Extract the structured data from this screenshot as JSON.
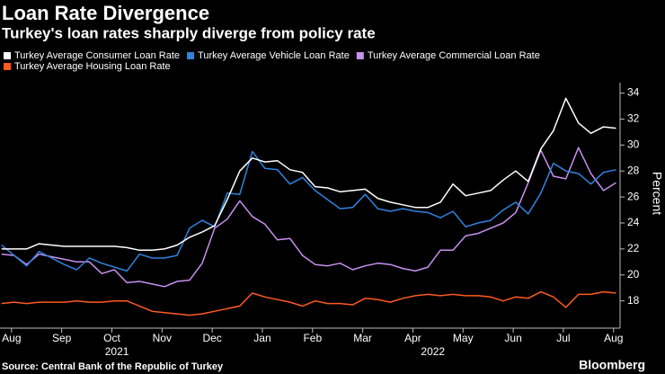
{
  "chart_data": {
    "type": "line",
    "title": "Loan Rate Divergence",
    "subtitle": "Turkey's loan rates sharply diverge from policy rate",
    "y_label": "Percent",
    "source": "Source: Central Bank of the Republic of Turkey",
    "credit": "Bloomberg",
    "legend": "top-left",
    "x": [
      -0.2,
      0.05,
      0.3,
      0.55,
      0.8,
      1.05,
      1.3,
      1.55,
      1.8,
      2.05,
      2.3,
      2.55,
      2.8,
      3.05,
      3.3,
      3.55,
      3.8,
      4.05,
      4.3,
      4.55,
      4.8,
      5.05,
      5.3,
      5.55,
      5.8,
      6.05,
      6.3,
      6.55,
      6.8,
      7.05,
      7.3,
      7.55,
      7.8,
      8.05,
      8.3,
      8.55,
      8.8,
      9.05,
      9.3,
      9.55,
      9.8,
      10.05,
      10.3,
      10.55,
      10.8,
      11.05,
      11.3,
      11.55,
      11.8,
      12.05
    ],
    "xlim": [
      -0.23,
      12.13
    ],
    "xticks": [
      {
        "value": 0,
        "label": "Aug"
      },
      {
        "value": 1,
        "label": "Sep"
      },
      {
        "value": 2,
        "label": "Oct"
      },
      {
        "value": 3,
        "label": "Nov"
      },
      {
        "value": 4,
        "label": "Dec"
      },
      {
        "value": 5,
        "label": "Jan"
      },
      {
        "value": 6,
        "label": "Feb"
      },
      {
        "value": 7,
        "label": "Mar"
      },
      {
        "value": 8,
        "label": "Apr"
      },
      {
        "value": 9,
        "label": "May"
      },
      {
        "value": 10,
        "label": "Jun"
      },
      {
        "value": 11,
        "label": "Jul"
      },
      {
        "value": 12,
        "label": "Aug"
      }
    ],
    "x_group_labels": [
      {
        "value": 2.1,
        "label": "2021"
      },
      {
        "value": 8.4,
        "label": "2022"
      }
    ],
    "ylim": [
      15.9,
      34.8
    ],
    "yticks": [
      18,
      20,
      22,
      24,
      26,
      28,
      30,
      32,
      34
    ],
    "series": [
      {
        "name": "Turkey Average Consumer Loan Rate",
        "color": "#ffffff",
        "values": [
          22.0,
          22.0,
          22.0,
          22.4,
          22.3,
          22.2,
          22.2,
          22.2,
          22.2,
          22.2,
          22.1,
          21.9,
          21.9,
          22.0,
          22.3,
          22.9,
          23.3,
          23.8,
          25.8,
          28.0,
          29.0,
          28.7,
          28.8,
          28.1,
          27.9,
          26.8,
          26.7,
          26.4,
          26.5,
          26.6,
          25.9,
          25.6,
          25.4,
          25.2,
          25.2,
          25.6,
          27.0,
          26.1,
          26.3,
          26.5,
          27.3,
          28.0,
          27.2,
          29.7,
          31.1,
          33.6,
          31.7,
          30.9,
          31.4,
          31.3
        ]
      },
      {
        "name": "Turkey Average Vehicle Loan Rate",
        "color": "#2f83e0",
        "values": [
          22.3,
          21.5,
          20.7,
          21.8,
          21.3,
          20.8,
          20.4,
          21.3,
          20.9,
          20.6,
          20.3,
          21.6,
          21.3,
          21.3,
          21.5,
          23.6,
          24.2,
          23.7,
          26.3,
          26.2,
          29.5,
          28.2,
          28.1,
          27.0,
          27.5,
          26.5,
          25.8,
          25.1,
          25.2,
          26.2,
          25.1,
          24.9,
          25.1,
          24.9,
          24.8,
          24.4,
          24.9,
          23.7,
          24.0,
          24.2,
          25.0,
          25.6,
          24.7,
          26.3,
          28.6,
          28.0,
          27.8,
          27.0,
          27.9,
          28.1
        ]
      },
      {
        "name": "Turkey Average Commercial Loan Rate",
        "color": "#c890f0",
        "values": [
          21.6,
          21.5,
          20.8,
          21.6,
          21.4,
          21.2,
          21.0,
          21.0,
          20.1,
          20.4,
          19.4,
          19.5,
          19.3,
          19.1,
          19.5,
          19.6,
          20.9,
          23.6,
          24.3,
          25.7,
          24.5,
          23.9,
          22.7,
          22.8,
          21.5,
          20.8,
          20.7,
          20.9,
          20.4,
          20.7,
          20.9,
          20.8,
          20.5,
          20.3,
          20.6,
          21.9,
          21.9,
          23.0,
          23.2,
          23.6,
          24.0,
          24.8,
          27.1,
          29.6,
          27.6,
          27.4,
          29.8,
          27.8,
          26.5,
          27.1
        ]
      },
      {
        "name": "Turkey Average Housing Loan Rate",
        "color": "#ff5a1f",
        "values": [
          17.8,
          17.9,
          17.8,
          17.9,
          17.9,
          17.9,
          18.0,
          17.9,
          17.9,
          18.0,
          18.0,
          17.6,
          17.2,
          17.1,
          17.0,
          16.9,
          17.0,
          17.2,
          17.4,
          17.6,
          18.6,
          18.3,
          18.1,
          17.9,
          17.6,
          18.0,
          17.8,
          17.8,
          17.7,
          18.2,
          18.1,
          17.9,
          18.2,
          18.4,
          18.5,
          18.4,
          18.5,
          18.4,
          18.4,
          18.3,
          18.0,
          18.3,
          18.2,
          18.7,
          18.3,
          17.5,
          18.5,
          18.5,
          18.7,
          18.6
        ]
      }
    ]
  }
}
